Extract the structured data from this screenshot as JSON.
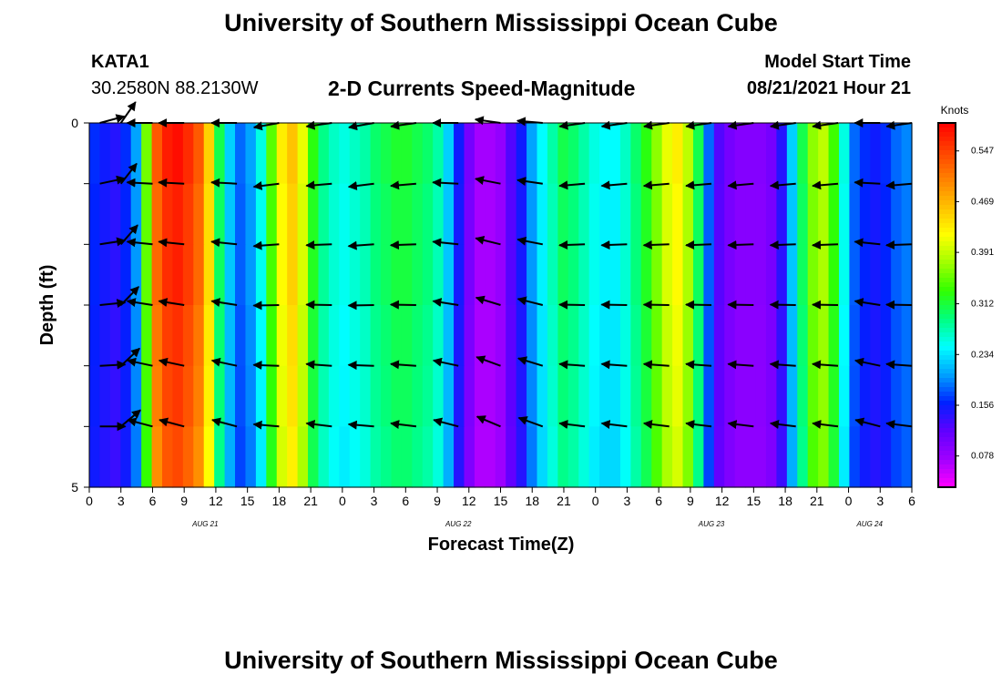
{
  "header": {
    "title": "University of Southern Mississippi Ocean Cube",
    "footer_title": "University of Southern Mississippi Ocean Cube",
    "station": "KATA1",
    "coords": "30.2580N  88.2130W",
    "subtitle": "2-D Currents Speed-Magnitude",
    "model_start_label": "Model Start Time",
    "model_start_value": "08/21/2021 Hour 21"
  },
  "chart_data": {
    "type": "heatmap",
    "title": "2-D Currents Speed-Magnitude",
    "xlabel": "Forecast Time(Z)",
    "ylabel": "Depth (ft)",
    "x_ticks": [
      "0",
      "3",
      "6",
      "9",
      "12",
      "15",
      "18",
      "21",
      "0",
      "3",
      "6",
      "9",
      "12",
      "15",
      "18",
      "21",
      "0",
      "3",
      "6",
      "9",
      "12",
      "15",
      "18",
      "21",
      "0",
      "3",
      "6"
    ],
    "x_tick_hours": [
      0,
      3,
      6,
      9,
      12,
      15,
      18,
      21,
      24,
      27,
      30,
      33,
      36,
      39,
      42,
      45,
      48,
      51,
      54,
      57,
      60,
      63,
      66,
      69,
      72,
      75,
      78
    ],
    "date_labels": [
      {
        "label": "AUG 21",
        "hour": 11
      },
      {
        "label": "AUG 22",
        "hour": 35
      },
      {
        "label": "AUG 23",
        "hour": 59
      },
      {
        "label": "AUG 24",
        "hour": 74
      }
    ],
    "y_ticks": [
      "0",
      "5"
    ],
    "x_range_hours": [
      0,
      78
    ],
    "depth_range_ft": [
      0,
      5
    ],
    "depth_layers": 6,
    "colorbar": {
      "unit": "Knots",
      "tick_labels": [
        "0.547",
        "0.469",
        "0.391",
        "0.312",
        "0.234",
        "0.156",
        "0.078"
      ],
      "tick_values": [
        0.547,
        0.469,
        0.391,
        0.312,
        0.234,
        0.156,
        0.078
      ],
      "range": [
        0.03,
        0.59
      ],
      "stops": [
        "#ff00ff",
        "#a000ff",
        "#6000ff",
        "#0020ff",
        "#00a0ff",
        "#00ffff",
        "#00ff80",
        "#30ff00",
        "#a0ff00",
        "#ffff00",
        "#ffc000",
        "#ff8000",
        "#ff4000",
        "#ff0000"
      ]
    },
    "speed_knots": [
      0.16,
      0.15,
      0.14,
      0.16,
      0.2,
      0.35,
      0.52,
      0.56,
      0.57,
      0.55,
      0.52,
      0.44,
      0.3,
      0.22,
      0.18,
      0.2,
      0.25,
      0.34,
      0.42,
      0.45,
      0.4,
      0.32,
      0.28,
      0.26,
      0.25,
      0.26,
      0.27,
      0.29,
      0.3,
      0.31,
      0.31,
      0.3,
      0.29,
      0.27,
      0.22,
      0.15,
      0.1,
      0.07,
      0.07,
      0.08,
      0.12,
      0.15,
      0.2,
      0.24,
      0.27,
      0.3,
      0.29,
      0.27,
      0.25,
      0.24,
      0.24,
      0.26,
      0.29,
      0.32,
      0.36,
      0.4,
      0.42,
      0.38,
      0.3,
      0.18,
      0.12,
      0.1,
      0.09,
      0.09,
      0.09,
      0.1,
      0.14,
      0.22,
      0.3,
      0.36,
      0.38,
      0.33,
      0.25,
      0.18,
      0.16,
      0.15,
      0.16,
      0.18,
      0.19
    ],
    "layer_factors": [
      1.02,
      1.0,
      1.0,
      0.98,
      0.97,
      0.95
    ],
    "vector_hours": [
      1,
      3,
      6,
      9,
      14,
      18,
      23,
      27,
      31,
      35,
      39,
      43,
      47,
      51,
      55,
      59,
      63,
      67,
      71,
      75,
      78
    ],
    "vector_angles_deg": [
      -15,
      -55,
      180,
      180,
      180,
      170,
      172,
      170,
      172,
      180,
      188,
      185,
      172,
      172,
      172,
      172,
      172,
      172,
      172,
      180,
      172
    ]
  }
}
